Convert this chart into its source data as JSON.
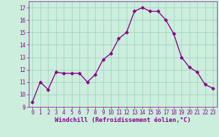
{
  "x": [
    0,
    1,
    2,
    3,
    4,
    5,
    6,
    7,
    8,
    9,
    10,
    11,
    12,
    13,
    14,
    15,
    16,
    17,
    18,
    19,
    20,
    21,
    22,
    23
  ],
  "y": [
    9.4,
    11.0,
    10.4,
    11.8,
    11.7,
    11.7,
    11.7,
    11.0,
    11.6,
    12.8,
    13.3,
    14.5,
    15.0,
    16.7,
    17.0,
    16.7,
    16.7,
    16.0,
    14.9,
    13.0,
    12.2,
    11.8,
    10.8,
    10.5
  ],
  "line_color": "#880088",
  "marker": "D",
  "marker_size": 2.5,
  "bg_color": "#cceedd",
  "grid_color": "#99ccbb",
  "xlabel": "Windchill (Refroidissement éolien,°C)",
  "ylabel": "",
  "ylim": [
    9,
    17.5
  ],
  "xlim": [
    -0.5,
    23.5
  ],
  "yticks": [
    9,
    10,
    11,
    12,
    13,
    14,
    15,
    16,
    17
  ],
  "xticks": [
    0,
    1,
    2,
    3,
    4,
    5,
    6,
    7,
    8,
    9,
    10,
    11,
    12,
    13,
    14,
    15,
    16,
    17,
    18,
    19,
    20,
    21,
    22,
    23
  ],
  "tick_color": "#880088",
  "tick_fontsize": 5.5,
  "xlabel_fontsize": 6.5,
  "line_width": 1.0
}
